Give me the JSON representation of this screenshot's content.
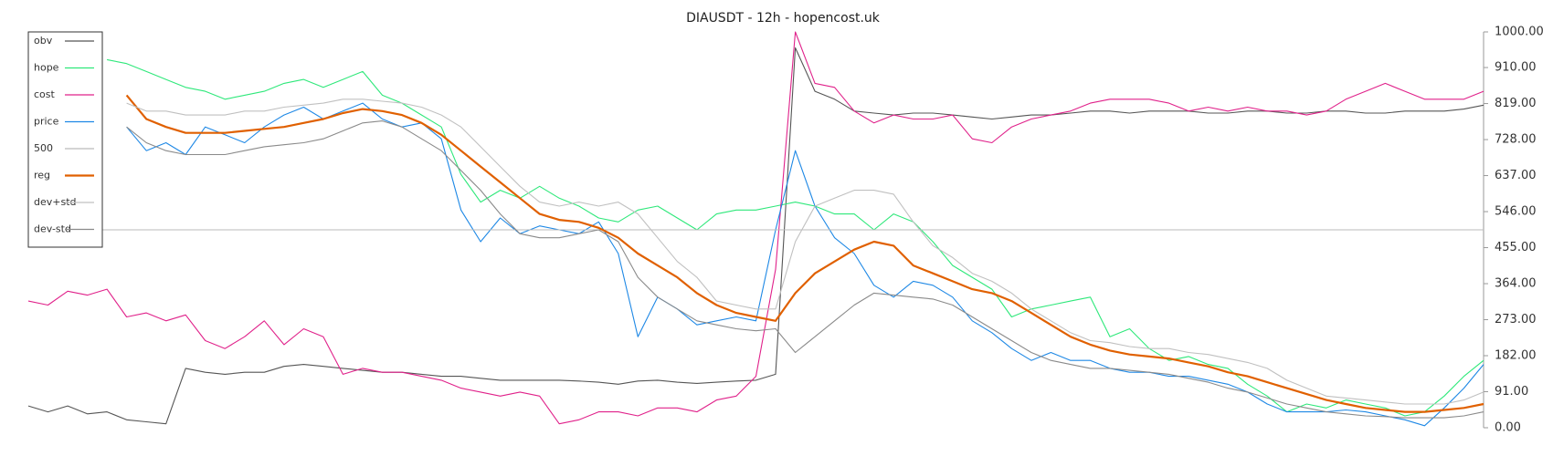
{
  "chart_data": {
    "type": "line",
    "title": "DIAUSDT - 12h - hopencost.uk",
    "ylim": [
      0,
      1000
    ],
    "yticks": [
      {
        "value": 0,
        "label": "0.00"
      },
      {
        "value": 91,
        "label": "91.00"
      },
      {
        "value": 182,
        "label": "182.00"
      },
      {
        "value": 273,
        "label": "273.00"
      },
      {
        "value": 364,
        "label": "364.00"
      },
      {
        "value": 455,
        "label": "455.00"
      },
      {
        "value": 546,
        "label": "546.00"
      },
      {
        "value": 637,
        "label": "637.00"
      },
      {
        "value": 728,
        "label": "728.00"
      },
      {
        "value": 819,
        "label": "819.00"
      },
      {
        "value": 910,
        "label": "910.00"
      },
      {
        "value": 1000,
        "label": "1000.00"
      }
    ],
    "legend": "upper left",
    "series": [
      {
        "name": "obv",
        "color": "#555555",
        "values": [
          55,
          40,
          55,
          35,
          40,
          20,
          15,
          10,
          150,
          140,
          135,
          140,
          140,
          155,
          160,
          155,
          150,
          145,
          140,
          140,
          135,
          130,
          130,
          125,
          120,
          120,
          120,
          120,
          118,
          115,
          110,
          118,
          120,
          115,
          112,
          115,
          118,
          120,
          135,
          960,
          850,
          830,
          800,
          795,
          790,
          795,
          795,
          790,
          785,
          780,
          785,
          790,
          790,
          795,
          800,
          800,
          795,
          800,
          800,
          800,
          795,
          795,
          800,
          800,
          795,
          795,
          800,
          800,
          795,
          795,
          800,
          800,
          800,
          805,
          815
        ]
      },
      {
        "name": "hope",
        "color": "#2ee87a",
        "values": [
          null,
          null,
          null,
          null,
          930,
          920,
          900,
          880,
          860,
          850,
          830,
          840,
          850,
          870,
          880,
          860,
          880,
          900,
          840,
          820,
          790,
          760,
          640,
          570,
          600,
          580,
          610,
          580,
          560,
          530,
          520,
          550,
          560,
          530,
          500,
          540,
          550,
          550,
          560,
          570,
          560,
          540,
          540,
          500,
          540,
          520,
          470,
          410,
          380,
          350,
          280,
          300,
          310,
          320,
          330,
          230,
          250,
          200,
          170,
          180,
          160,
          150,
          110,
          80,
          40,
          60,
          50,
          70,
          60,
          50,
          30,
          40,
          80,
          130,
          170
        ]
      },
      {
        "name": "cost",
        "color": "#e0218a",
        "values": [
          320,
          310,
          345,
          335,
          350,
          280,
          290,
          270,
          285,
          220,
          200,
          230,
          270,
          210,
          250,
          230,
          135,
          150,
          140,
          140,
          130,
          120,
          100,
          90,
          80,
          90,
          80,
          10,
          20,
          40,
          40,
          30,
          50,
          50,
          40,
          70,
          80,
          130,
          400,
          1000,
          870,
          860,
          800,
          770,
          790,
          780,
          780,
          790,
          730,
          720,
          760,
          780,
          790,
          800,
          820,
          830,
          830,
          830,
          820,
          800,
          810,
          800,
          810,
          800,
          800,
          790,
          800,
          830,
          850,
          870,
          850,
          830,
          830,
          830,
          850
        ]
      },
      {
        "name": "price",
        "color": "#1e88e5",
        "values": [
          null,
          null,
          null,
          null,
          null,
          760,
          700,
          720,
          690,
          760,
          740,
          720,
          760,
          790,
          810,
          780,
          800,
          820,
          780,
          760,
          770,
          730,
          550,
          470,
          530,
          490,
          510,
          500,
          490,
          520,
          440,
          230,
          330,
          300,
          260,
          270,
          280,
          270,
          500,
          700,
          560,
          480,
          440,
          360,
          330,
          370,
          360,
          330,
          270,
          240,
          200,
          170,
          190,
          170,
          170,
          150,
          140,
          140,
          130,
          130,
          120,
          110,
          90,
          60,
          40,
          40,
          40,
          45,
          40,
          30,
          20,
          5,
          50,
          100,
          160
        ]
      },
      {
        "name": "500",
        "color": "#bbbbbb",
        "values": [
          500,
          500,
          500,
          500,
          500,
          500,
          500,
          500,
          500,
          500,
          500,
          500,
          500,
          500,
          500,
          500,
          500,
          500,
          500,
          500,
          500,
          500,
          500,
          500,
          500,
          500,
          500,
          500,
          500,
          500,
          500,
          500,
          500,
          500,
          500,
          500,
          500,
          500,
          500,
          500,
          500,
          500,
          500,
          500,
          500,
          500,
          500,
          500,
          500,
          500,
          500,
          500,
          500,
          500,
          500,
          500,
          500,
          500,
          500,
          500,
          500,
          500,
          500,
          500,
          500,
          500,
          500,
          500,
          500,
          500,
          500,
          500,
          500,
          500,
          500
        ]
      },
      {
        "name": "reg",
        "color": "#e06000",
        "values": [
          null,
          null,
          null,
          null,
          null,
          840,
          780,
          760,
          745,
          745,
          745,
          750,
          755,
          760,
          770,
          780,
          795,
          805,
          800,
          790,
          770,
          740,
          700,
          660,
          620,
          580,
          540,
          525,
          520,
          505,
          480,
          440,
          410,
          380,
          340,
          310,
          290,
          280,
          270,
          340,
          390,
          420,
          450,
          470,
          460,
          410,
          390,
          370,
          350,
          340,
          320,
          290,
          260,
          230,
          210,
          195,
          185,
          180,
          175,
          165,
          155,
          140,
          130,
          115,
          100,
          85,
          70,
          60,
          50,
          45,
          40,
          40,
          45,
          50,
          60
        ]
      },
      {
        "name": "dev+std",
        "color": "#c0c0c0",
        "values": [
          null,
          null,
          null,
          null,
          null,
          820,
          800,
          800,
          790,
          790,
          790,
          800,
          800,
          810,
          815,
          820,
          830,
          830,
          825,
          820,
          810,
          790,
          760,
          710,
          660,
          610,
          570,
          560,
          570,
          560,
          570,
          540,
          480,
          420,
          380,
          320,
          310,
          300,
          300,
          470,
          560,
          580,
          600,
          600,
          590,
          520,
          460,
          430,
          390,
          370,
          340,
          300,
          270,
          240,
          220,
          215,
          205,
          200,
          200,
          190,
          185,
          175,
          165,
          150,
          120,
          100,
          80,
          75,
          70,
          65,
          60,
          60,
          60,
          70,
          90
        ]
      },
      {
        "name": "dev-std",
        "color": "#8a8a8a",
        "values": [
          null,
          null,
          null,
          null,
          null,
          760,
          720,
          700,
          690,
          690,
          690,
          700,
          710,
          715,
          720,
          730,
          750,
          770,
          775,
          760,
          730,
          700,
          650,
          600,
          540,
          490,
          480,
          480,
          490,
          500,
          470,
          380,
          330,
          300,
          270,
          260,
          250,
          245,
          250,
          190,
          230,
          270,
          310,
          340,
          335,
          330,
          325,
          310,
          280,
          250,
          220,
          190,
          170,
          160,
          150,
          150,
          145,
          140,
          135,
          125,
          115,
          100,
          90,
          75,
          60,
          50,
          40,
          35,
          30,
          28,
          25,
          25,
          25,
          30,
          40
        ]
      }
    ]
  }
}
